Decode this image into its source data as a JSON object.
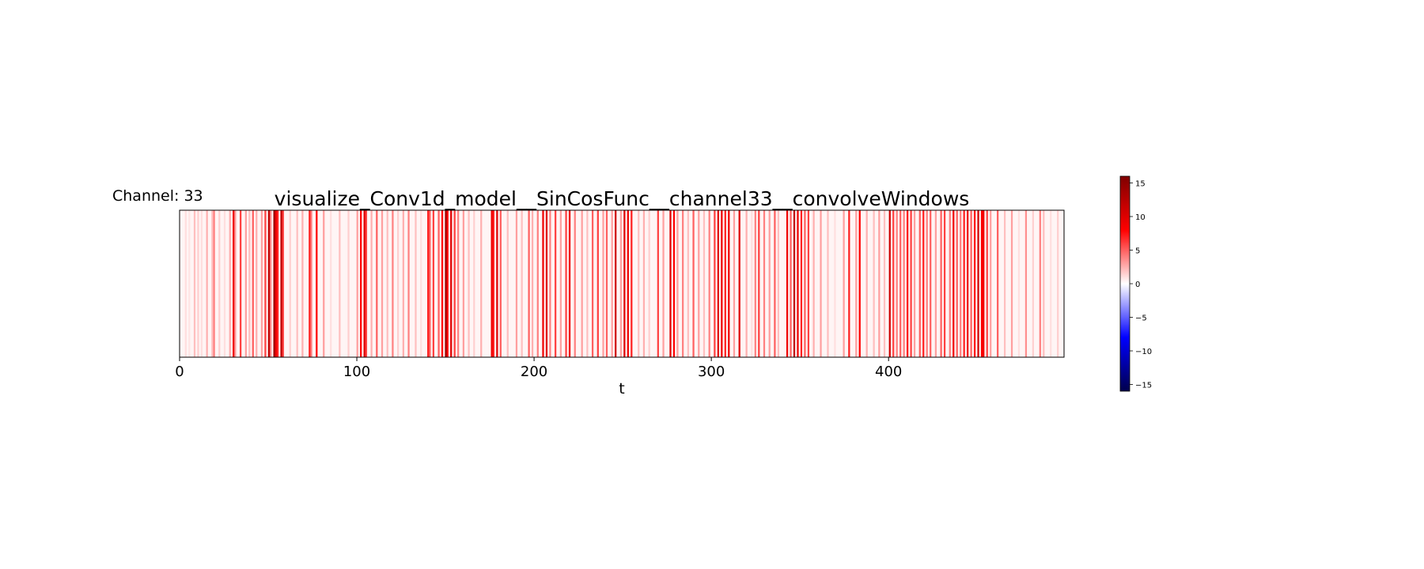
{
  "channel_label": "Channel: 33",
  "chart_data": {
    "type": "heatmap",
    "title": "visualize_Conv1d_model__SinCosFunc__channel33__convolveWindows",
    "xlabel": "t",
    "ylabel": "",
    "xlim": [
      0,
      499
    ],
    "x_ticks": [
      0,
      100,
      200,
      300,
      400
    ],
    "x_tick_labels": [
      "0",
      "100",
      "200",
      "300",
      "400"
    ],
    "grid": false,
    "colorscale": "seismic",
    "colors": {
      "negative_max": "#00004c",
      "negative": "#0000ff",
      "zero": "#ffffff",
      "positive": "#ff0000",
      "positive_max": "#7f0000"
    },
    "vmin": -16,
    "vmax": 16,
    "colorbar_ticks": [
      15,
      10,
      5,
      0,
      -5,
      -10,
      -15
    ],
    "colorbar_tick_labels": [
      "15",
      "10",
      "5",
      "0",
      "−5",
      "−10",
      "−15"
    ],
    "t_count": 500,
    "background_value": 0.3,
    "values_by_t": [
      [
        3,
        1
      ],
      [
        5,
        0.8
      ],
      [
        8,
        2
      ],
      [
        10,
        1.5
      ],
      [
        12,
        1
      ],
      [
        15,
        2.5
      ],
      [
        18,
        2
      ],
      [
        19,
        4
      ],
      [
        22,
        1.5
      ],
      [
        25,
        1
      ],
      [
        28,
        2.5
      ],
      [
        30,
        9
      ],
      [
        31,
        3
      ],
      [
        34,
        6
      ],
      [
        37,
        3
      ],
      [
        39,
        2
      ],
      [
        41,
        5
      ],
      [
        43,
        2.5
      ],
      [
        46,
        3
      ],
      [
        48,
        6
      ],
      [
        50,
        12
      ],
      [
        51,
        4
      ],
      [
        53,
        14
      ],
      [
        54,
        9
      ],
      [
        55,
        7
      ],
      [
        57,
        12
      ],
      [
        58,
        6
      ],
      [
        62,
        1.5
      ],
      [
        66,
        2
      ],
      [
        69,
        2.5
      ],
      [
        73,
        7
      ],
      [
        74,
        4
      ],
      [
        77,
        8
      ],
      [
        81,
        3
      ],
      [
        85,
        1
      ],
      [
        90,
        2
      ],
      [
        95,
        1.5
      ],
      [
        100,
        3
      ],
      [
        102,
        8
      ],
      [
        104,
        10
      ],
      [
        105,
        6
      ],
      [
        108,
        2.5
      ],
      [
        111,
        5
      ],
      [
        114,
        3
      ],
      [
        117,
        2
      ],
      [
        120,
        4
      ],
      [
        123,
        1.5
      ],
      [
        126,
        2.5
      ],
      [
        129,
        4
      ],
      [
        133,
        2
      ],
      [
        136,
        1
      ],
      [
        140,
        7
      ],
      [
        141,
        5
      ],
      [
        143,
        6
      ],
      [
        146,
        5
      ],
      [
        148,
        8
      ],
      [
        150,
        14
      ],
      [
        151,
        8
      ],
      [
        153,
        10
      ],
      [
        155,
        6
      ],
      [
        157,
        4
      ],
      [
        160,
        3
      ],
      [
        163,
        2
      ],
      [
        166,
        1.5
      ],
      [
        170,
        2.5
      ],
      [
        176,
        9
      ],
      [
        177,
        7
      ],
      [
        179,
        10
      ],
      [
        181,
        5
      ],
      [
        185,
        2
      ],
      [
        190,
        3
      ],
      [
        193,
        2
      ],
      [
        197,
        5
      ],
      [
        199,
        2.5
      ],
      [
        202,
        4
      ],
      [
        205,
        9
      ],
      [
        207,
        10
      ],
      [
        209,
        4
      ],
      [
        212,
        6
      ],
      [
        215,
        3
      ],
      [
        218,
        6
      ],
      [
        220,
        9
      ],
      [
        223,
        4
      ],
      [
        227,
        3
      ],
      [
        230,
        2
      ],
      [
        233,
        5
      ],
      [
        236,
        6
      ],
      [
        239,
        3
      ],
      [
        241,
        5
      ],
      [
        244,
        3
      ],
      [
        246,
        11
      ],
      [
        249,
        3
      ],
      [
        251,
        10
      ],
      [
        253,
        9
      ],
      [
        255,
        7
      ],
      [
        259,
        2
      ],
      [
        262,
        2.5
      ],
      [
        265,
        1.5
      ],
      [
        270,
        6
      ],
      [
        273,
        3
      ],
      [
        277,
        10
      ],
      [
        279,
        8
      ],
      [
        281,
        3
      ],
      [
        284,
        4
      ],
      [
        287,
        2
      ],
      [
        290,
        5
      ],
      [
        293,
        3
      ],
      [
        296,
        2
      ],
      [
        299,
        4
      ],
      [
        302,
        6
      ],
      [
        304,
        10
      ],
      [
        306,
        9
      ],
      [
        308,
        7
      ],
      [
        310,
        9
      ],
      [
        313,
        3
      ],
      [
        316,
        10
      ],
      [
        320,
        2.5
      ],
      [
        323,
        1
      ],
      [
        325,
        4
      ],
      [
        327,
        6
      ],
      [
        330,
        4
      ],
      [
        333,
        3
      ],
      [
        336,
        5
      ],
      [
        338,
        2
      ],
      [
        343,
        9
      ],
      [
        345,
        5
      ],
      [
        347,
        12
      ],
      [
        349,
        9
      ],
      [
        351,
        7
      ],
      [
        353,
        5
      ],
      [
        355,
        6
      ],
      [
        358,
        2.5
      ],
      [
        362,
        3
      ],
      [
        366,
        2
      ],
      [
        370,
        1
      ],
      [
        375,
        3
      ],
      [
        378,
        7
      ],
      [
        382,
        3
      ],
      [
        384,
        8
      ],
      [
        388,
        2.5
      ],
      [
        392,
        2
      ],
      [
        395,
        3
      ],
      [
        398,
        2
      ],
      [
        401,
        11
      ],
      [
        403,
        6
      ],
      [
        405,
        4
      ],
      [
        407,
        5
      ],
      [
        409,
        4
      ],
      [
        411,
        8
      ],
      [
        413,
        6
      ],
      [
        415,
        3
      ],
      [
        418,
        5
      ],
      [
        420,
        7
      ],
      [
        422,
        4
      ],
      [
        424,
        5
      ],
      [
        427,
        3
      ],
      [
        430,
        5
      ],
      [
        432,
        6
      ],
      [
        435,
        4
      ],
      [
        437,
        9
      ],
      [
        439,
        5
      ],
      [
        441,
        4
      ],
      [
        443,
        7
      ],
      [
        445,
        9
      ],
      [
        447,
        5
      ],
      [
        449,
        8
      ],
      [
        451,
        11
      ],
      [
        453,
        8
      ],
      [
        454,
        9
      ],
      [
        456,
        6
      ],
      [
        458,
        3
      ],
      [
        462,
        5
      ],
      [
        466,
        2
      ],
      [
        470,
        3
      ],
      [
        474,
        1
      ],
      [
        478,
        3.5
      ],
      [
        482,
        1.5
      ],
      [
        486,
        4
      ],
      [
        488,
        2
      ],
      [
        492,
        1
      ],
      [
        496,
        1.5
      ]
    ]
  }
}
